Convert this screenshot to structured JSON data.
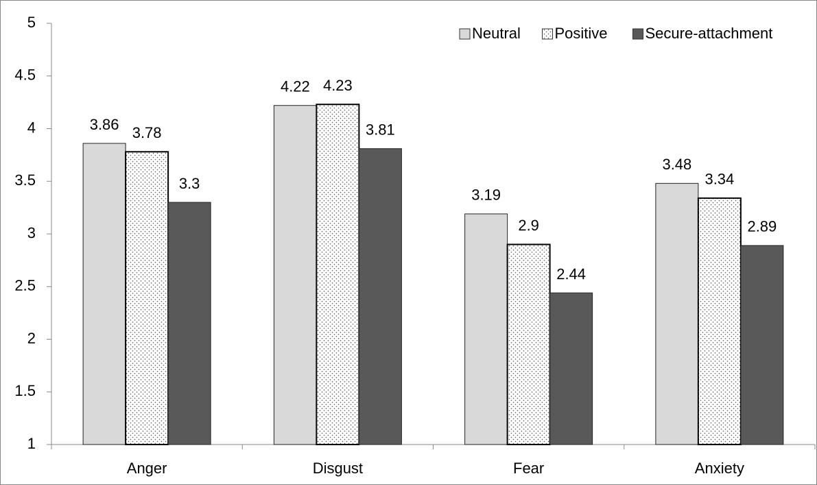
{
  "chart_data": {
    "type": "bar",
    "categories": [
      "Anger",
      "Disgust",
      "Fear",
      "Anxiety"
    ],
    "series": [
      {
        "name": "Neutral",
        "color": "#d9d9d9",
        "values": [
          3.86,
          4.22,
          3.19,
          3.48
        ]
      },
      {
        "name": "Positive",
        "color": "#ffffff",
        "hatch": "dots",
        "values": [
          3.78,
          4.23,
          2.9,
          3.34
        ]
      },
      {
        "name": "Secure-attachment",
        "color": "#595959",
        "values": [
          3.3,
          3.81,
          2.44,
          2.89
        ]
      }
    ],
    "ylim": [
      1,
      5
    ],
    "yticks": [
      1,
      1.5,
      2,
      2.5,
      3,
      3.5,
      4,
      4.5,
      5
    ],
    "grid": false,
    "legend": "top-right"
  }
}
